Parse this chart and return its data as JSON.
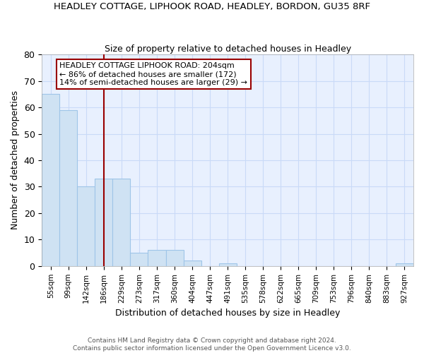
{
  "title": "HEADLEY COTTAGE, LIPHOOK ROAD, HEADLEY, BORDON, GU35 8RF",
  "subtitle": "Size of property relative to detached houses in Headley",
  "xlabel": "Distribution of detached houses by size in Headley",
  "ylabel": "Number of detached properties",
  "bar_labels": [
    "55sqm",
    "99sqm",
    "142sqm",
    "186sqm",
    "229sqm",
    "273sqm",
    "317sqm",
    "360sqm",
    "404sqm",
    "447sqm",
    "491sqm",
    "535sqm",
    "578sqm",
    "622sqm",
    "665sqm",
    "709sqm",
    "753sqm",
    "796sqm",
    "840sqm",
    "883sqm",
    "927sqm"
  ],
  "bar_values": [
    65,
    59,
    30,
    33,
    33,
    5,
    6,
    6,
    2,
    0,
    1,
    0,
    0,
    0,
    0,
    0,
    0,
    0,
    0,
    0,
    1
  ],
  "bar_color": "#cfe2f3",
  "bar_edge_color": "#9fc5e8",
  "grid_color": "#c9daf8",
  "background_color": "#e8f0fe",
  "vline_x": 3,
  "vline_color": "#990000",
  "annotation_text": "HEADLEY COTTAGE LIPHOOK ROAD: 204sqm\n← 86% of detached houses are smaller (172)\n14% of semi-detached houses are larger (29) →",
  "annotation_box_color": "white",
  "annotation_box_edge_color": "#990000",
  "footer_text": "Contains HM Land Registry data © Crown copyright and database right 2024.\nContains public sector information licensed under the Open Government Licence v3.0.",
  "ylim": [
    0,
    80
  ],
  "yticks": [
    0,
    10,
    20,
    30,
    40,
    50,
    60,
    70,
    80
  ]
}
